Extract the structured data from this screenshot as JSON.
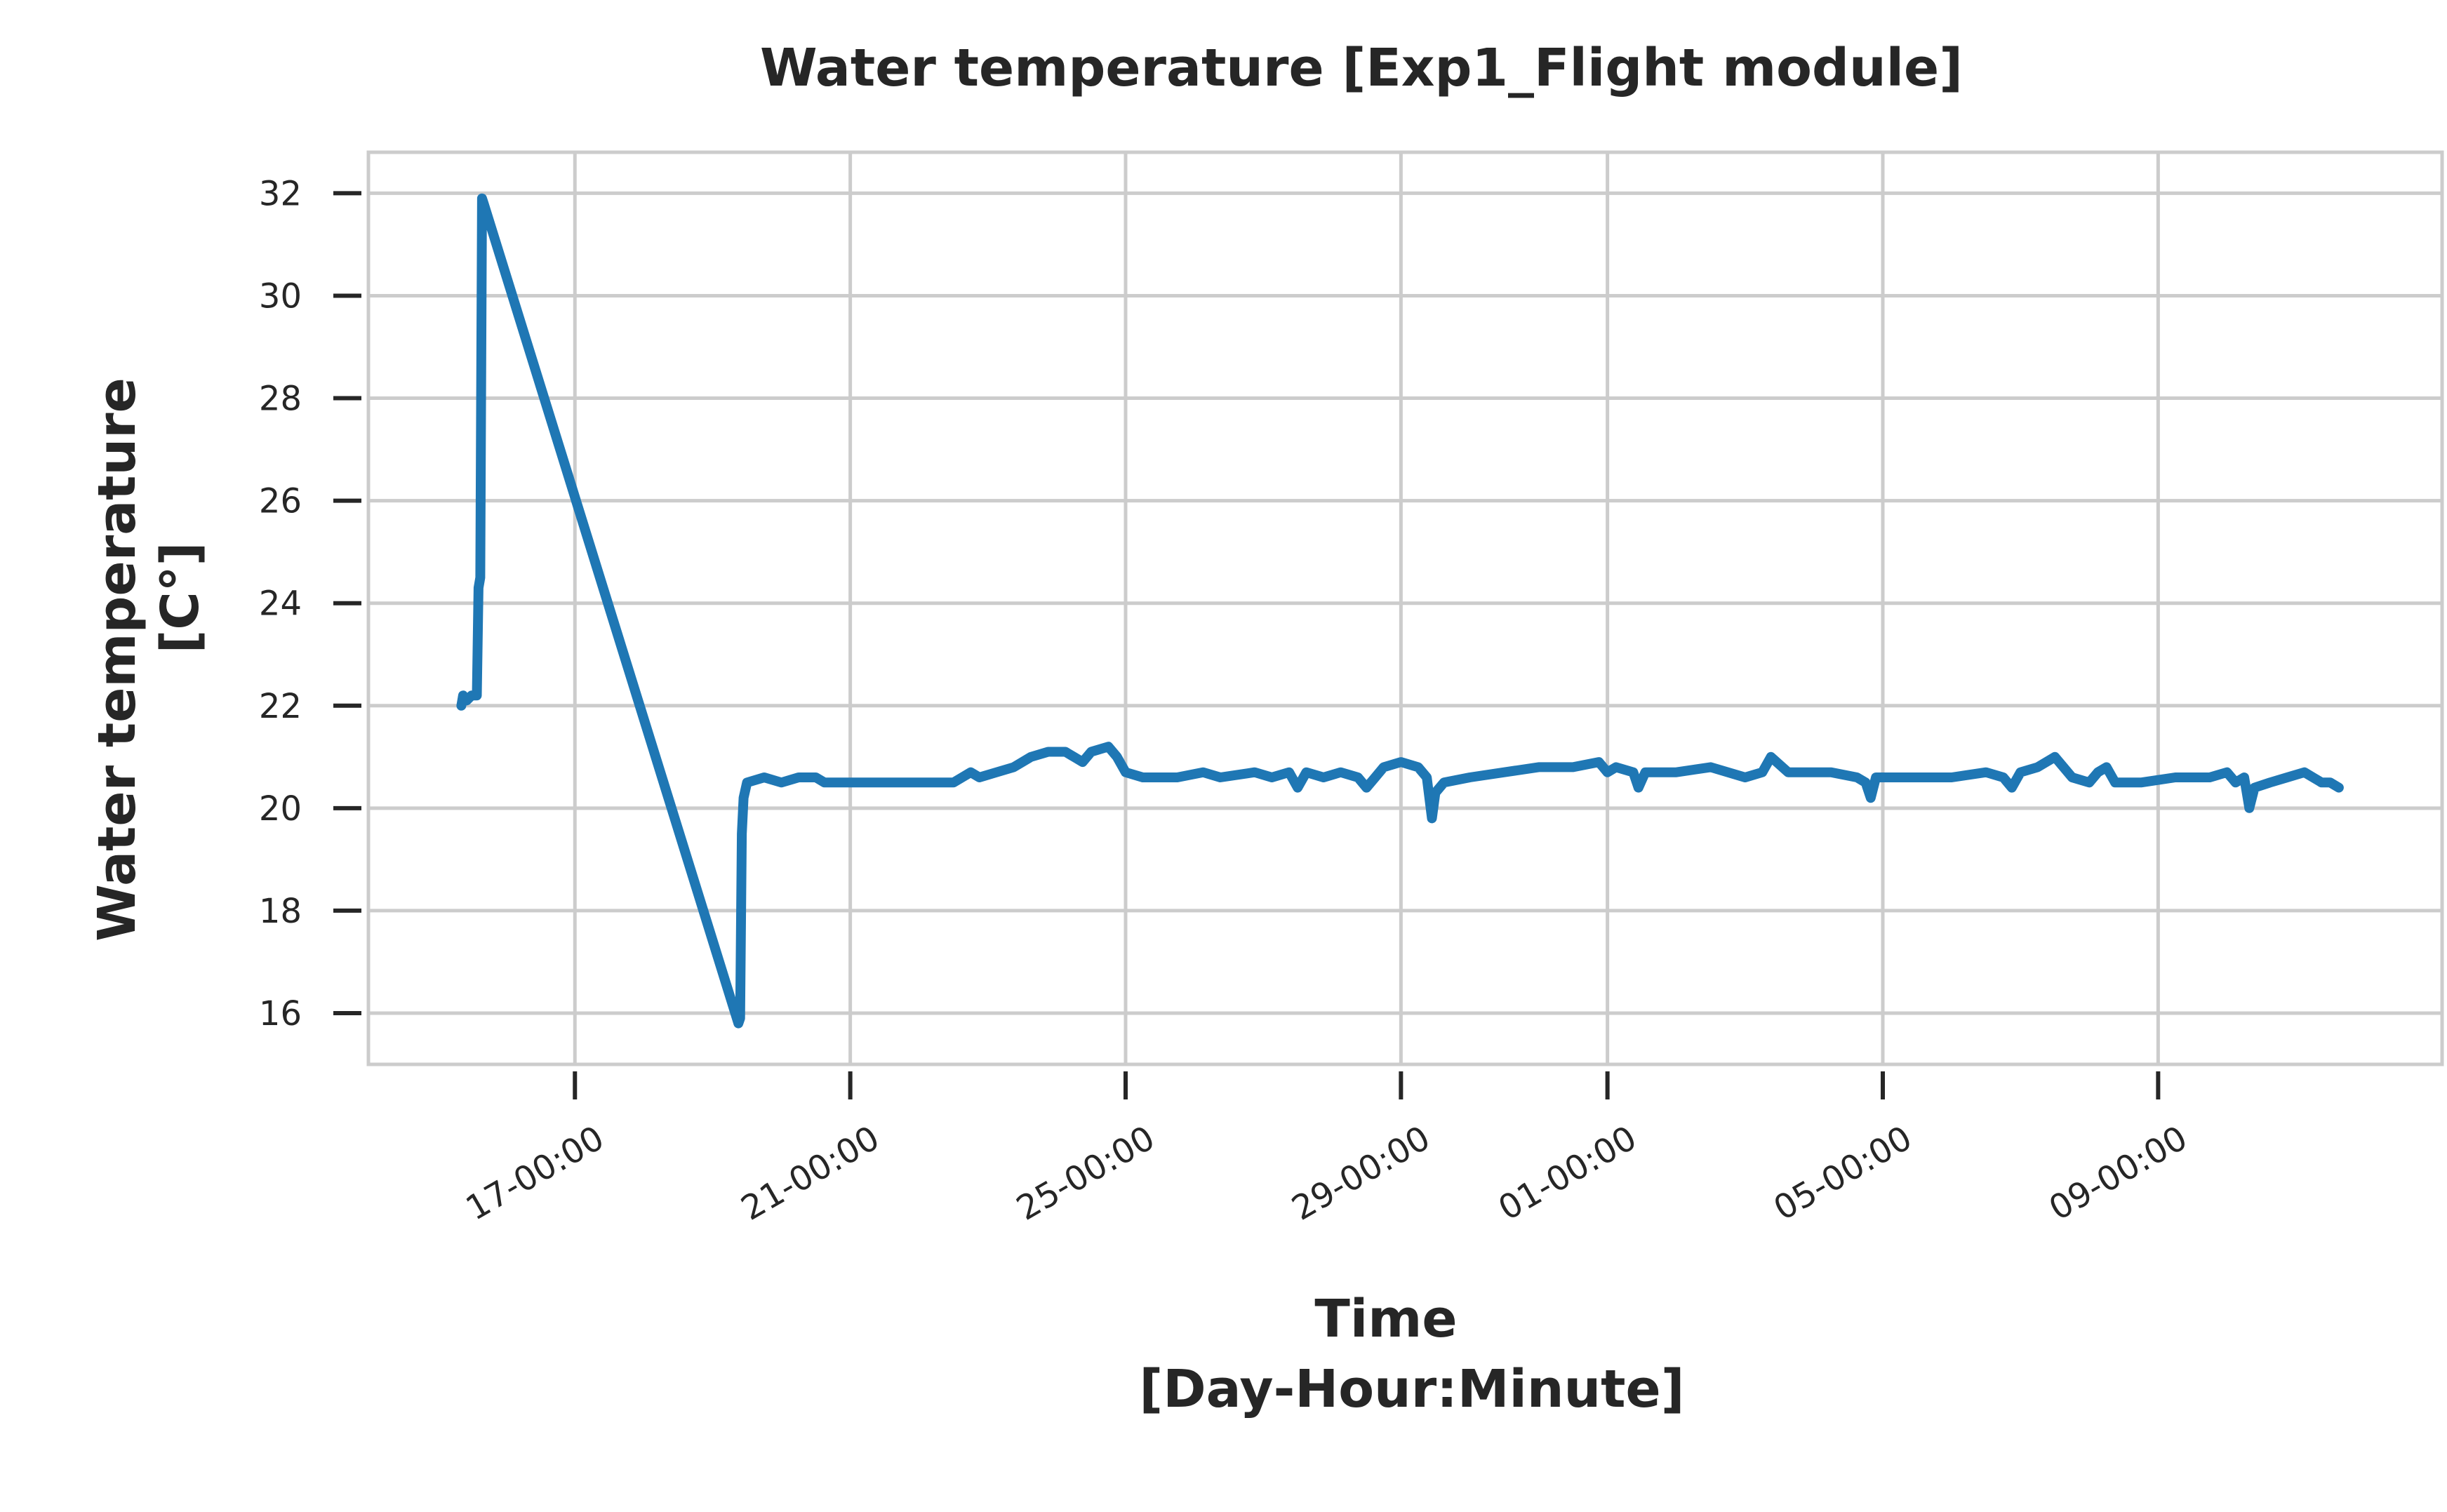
{
  "chart_data": {
    "type": "line",
    "title": "Water temperature [Exp1_Flight module]",
    "xlabel_line1": "Time",
    "xlabel_line2": "[Day-Hour:Minute]",
    "ylabel_line1": "Water temperature",
    "ylabel_line2": "[C°]",
    "grid": true,
    "legend": "none",
    "color": "#1f77b4",
    "x_unit": "hours",
    "xlim": [
      8.0,
      128.5
    ],
    "ylim": [
      15.0,
      32.8
    ],
    "x_ticks": [
      {
        "x": 20,
        "label": "17-00:00"
      },
      {
        "x": 36,
        "label": "21-00:00"
      },
      {
        "x": 52,
        "label": "25-00:00"
      },
      {
        "x": 68,
        "label": "29-00:00"
      },
      {
        "x": 80,
        "label": "01-00:00"
      },
      {
        "x": 96,
        "label": "05-00:00"
      },
      {
        "x": 112,
        "label": "09-00:00"
      }
    ],
    "y_ticks": [
      16,
      18,
      20,
      22,
      24,
      26,
      28,
      30,
      32
    ],
    "series": [
      {
        "points": [
          [
            13.4,
            22.0
          ],
          [
            13.5,
            22.2
          ],
          [
            13.7,
            22.1
          ],
          [
            14.0,
            22.2
          ],
          [
            14.3,
            22.2
          ],
          [
            14.4,
            24.3
          ],
          [
            14.5,
            24.5
          ],
          [
            14.6,
            31.9
          ],
          [
            14.7,
            31.8
          ],
          [
            29.5,
            15.8
          ],
          [
            29.6,
            15.9
          ],
          [
            29.7,
            19.5
          ],
          [
            29.8,
            20.2
          ],
          [
            30.0,
            20.5
          ],
          [
            31.0,
            20.6
          ],
          [
            32.0,
            20.5
          ],
          [
            33.0,
            20.6
          ],
          [
            34.0,
            20.6
          ],
          [
            34.5,
            20.5
          ],
          [
            35.0,
            20.5
          ],
          [
            40.0,
            20.5
          ],
          [
            42.0,
            20.5
          ],
          [
            42.5,
            20.6
          ],
          [
            43.0,
            20.7
          ],
          [
            43.5,
            20.6
          ],
          [
            44.5,
            20.7
          ],
          [
            45.5,
            20.8
          ],
          [
            46.5,
            21.0
          ],
          [
            47.5,
            21.1
          ],
          [
            48.5,
            21.1
          ],
          [
            49.0,
            21.0
          ],
          [
            49.5,
            20.9
          ],
          [
            50.0,
            21.1
          ],
          [
            51.0,
            21.2
          ],
          [
            51.5,
            21.0
          ],
          [
            52.0,
            20.7
          ],
          [
            53.0,
            20.6
          ],
          [
            55.0,
            20.6
          ],
          [
            56.5,
            20.7
          ],
          [
            57.5,
            20.6
          ],
          [
            59.5,
            20.7
          ],
          [
            60.5,
            20.6
          ],
          [
            61.5,
            20.7
          ],
          [
            62.0,
            20.4
          ],
          [
            62.5,
            20.7
          ],
          [
            63.5,
            20.6
          ],
          [
            64.5,
            20.7
          ],
          [
            65.5,
            20.6
          ],
          [
            66.0,
            20.4
          ],
          [
            66.5,
            20.6
          ],
          [
            67.0,
            20.8
          ],
          [
            68.0,
            20.9
          ],
          [
            69.0,
            20.8
          ],
          [
            69.5,
            20.6
          ],
          [
            69.8,
            19.8
          ],
          [
            70.0,
            20.3
          ],
          [
            70.5,
            20.5
          ],
          [
            72.0,
            20.6
          ],
          [
            74.0,
            20.7
          ],
          [
            76.0,
            20.8
          ],
          [
            78.0,
            20.8
          ],
          [
            79.5,
            20.9
          ],
          [
            80.0,
            20.7
          ],
          [
            80.5,
            20.8
          ],
          [
            81.5,
            20.7
          ],
          [
            81.8,
            20.4
          ],
          [
            82.2,
            20.7
          ],
          [
            84.0,
            20.7
          ],
          [
            86.0,
            20.8
          ],
          [
            88.0,
            20.6
          ],
          [
            89.0,
            20.7
          ],
          [
            89.5,
            21.0
          ],
          [
            90.5,
            20.7
          ],
          [
            93.0,
            20.7
          ],
          [
            94.5,
            20.6
          ],
          [
            95.0,
            20.5
          ],
          [
            95.3,
            20.2
          ],
          [
            95.6,
            20.6
          ],
          [
            98.0,
            20.6
          ],
          [
            100.0,
            20.6
          ],
          [
            102.0,
            20.7
          ],
          [
            103.0,
            20.6
          ],
          [
            103.5,
            20.4
          ],
          [
            104.0,
            20.7
          ],
          [
            105.0,
            20.8
          ],
          [
            106.0,
            21.0
          ],
          [
            106.5,
            20.8
          ],
          [
            107.0,
            20.6
          ],
          [
            108.0,
            20.5
          ],
          [
            108.5,
            20.7
          ],
          [
            109.0,
            20.8
          ],
          [
            109.5,
            20.5
          ],
          [
            111.0,
            20.5
          ],
          [
            113.0,
            20.6
          ],
          [
            115.0,
            20.6
          ],
          [
            116.0,
            20.7
          ],
          [
            116.5,
            20.5
          ],
          [
            117.0,
            20.6
          ],
          [
            117.3,
            20.0
          ],
          [
            117.6,
            20.4
          ],
          [
            118.5,
            20.5
          ],
          [
            119.5,
            20.6
          ],
          [
            120.5,
            20.7
          ],
          [
            121.5,
            20.5
          ],
          [
            122.0,
            20.5
          ],
          [
            122.5,
            20.4
          ]
        ]
      }
    ]
  }
}
